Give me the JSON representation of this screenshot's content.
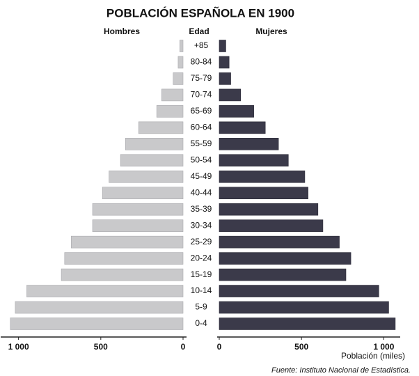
{
  "chart_data": {
    "type": "pyramid",
    "title": "POBLACIÓN ESPAÑOLA EN 1900",
    "category_label": "Edad",
    "x_label": "Población (miles)",
    "source": "Fuente: Instituto Nacional de Estadística.",
    "categories": [
      "+85",
      "80-84",
      "75-79",
      "70-74",
      "65-69",
      "60-64",
      "55-59",
      "50-54",
      "45-49",
      "40-44",
      "35-39",
      "30-34",
      "25-29",
      "20-24",
      "15-19",
      "10-14",
      "5-9",
      "0-4"
    ],
    "series": [
      {
        "name": "Hombres",
        "side": "left",
        "color": "#c9c9cb",
        "values": [
          20,
          30,
          60,
          130,
          160,
          270,
          350,
          380,
          450,
          490,
          550,
          550,
          680,
          720,
          740,
          950,
          1020,
          1050
        ]
      },
      {
        "name": "Mujeres",
        "side": "right",
        "color": "#3b3a4a",
        "values": [
          40,
          60,
          70,
          130,
          210,
          280,
          360,
          420,
          520,
          540,
          600,
          630,
          730,
          800,
          770,
          970,
          1030,
          1070
        ]
      }
    ],
    "xlim": [
      0,
      1100
    ],
    "xticks": [
      0,
      500,
      {
        "value": 1000,
        "label": "1 000"
      }
    ]
  }
}
